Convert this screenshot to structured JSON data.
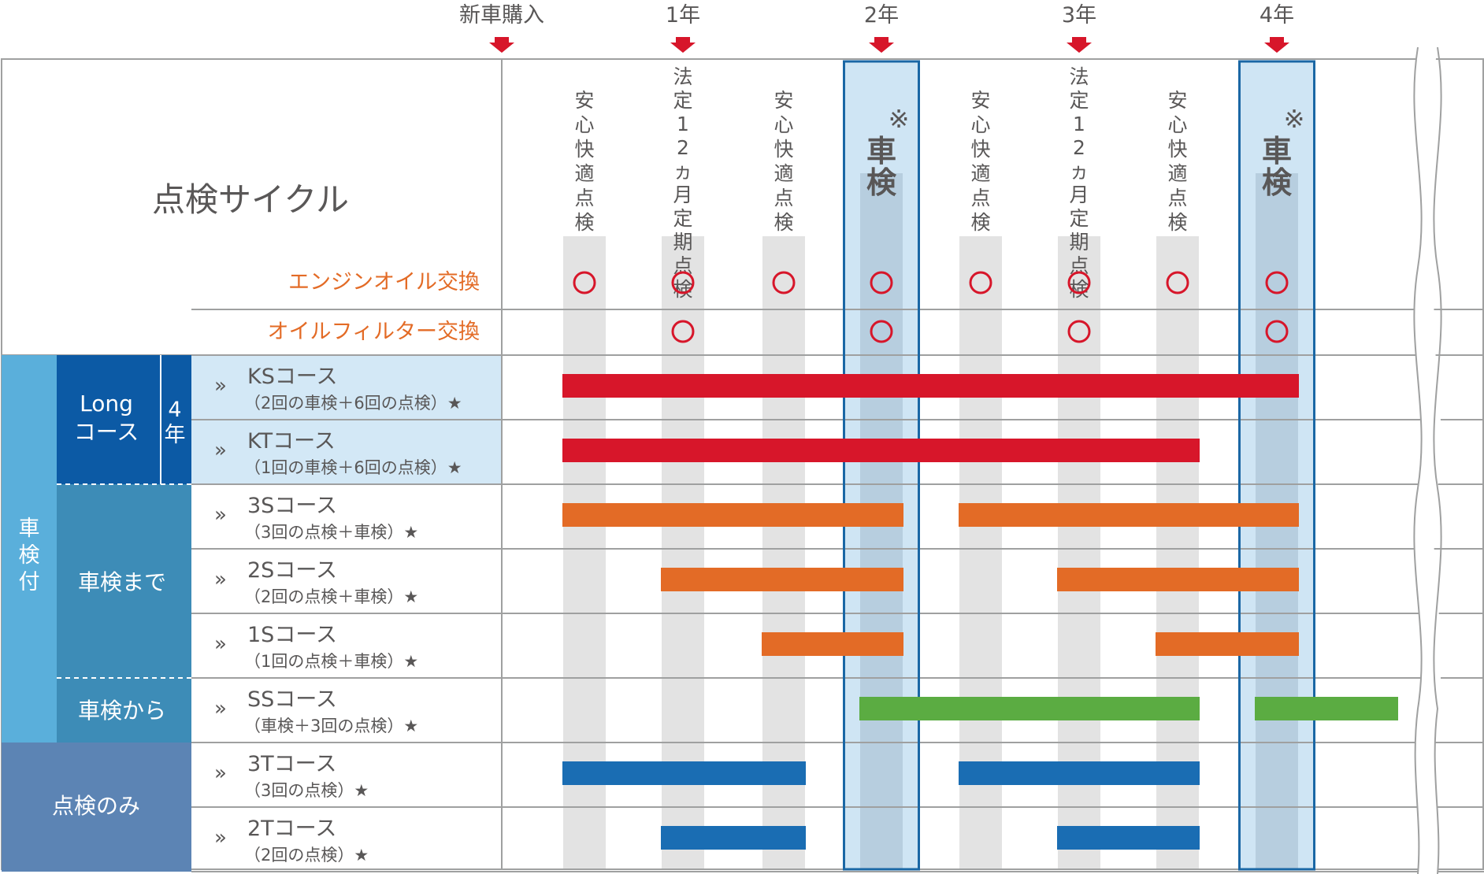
{
  "timeline": {
    "markers": [
      "新車購入",
      "1年",
      "2年",
      "3年",
      "4年"
    ]
  },
  "header": {
    "title": "点検サイクル",
    "engine_oil_label": "エンジンオイル交換",
    "oil_filter_label": "オイルフィルター交換",
    "shaken_note": "※"
  },
  "inspections": [
    {
      "label": "安心快適点検",
      "type": "anshin",
      "engine_oil": true,
      "oil_filter": false
    },
    {
      "label": "法定12ヵ月定期点検",
      "type": "legal",
      "engine_oil": true,
      "oil_filter": true
    },
    {
      "label": "安心快適点検",
      "type": "anshin",
      "engine_oil": true,
      "oil_filter": false
    },
    {
      "label": "車検",
      "type": "shaken",
      "engine_oil": true,
      "oil_filter": true
    },
    {
      "label": "安心快適点検",
      "type": "anshin",
      "engine_oil": true,
      "oil_filter": false
    },
    {
      "label": "法定12ヵ月定期点検",
      "type": "legal",
      "engine_oil": true,
      "oil_filter": true
    },
    {
      "label": "安心快適点検",
      "type": "anshin",
      "engine_oil": true,
      "oil_filter": false
    },
    {
      "label": "車検",
      "type": "shaken",
      "engine_oil": true,
      "oil_filter": true
    }
  ],
  "mark_symbol": "○",
  "groups": {
    "shaken_tsuki": "車検付",
    "long_course": [
      "Long",
      "コース"
    ],
    "long_years": [
      "4",
      "年"
    ],
    "shaken_made": "車検まで",
    "shaken_kara": "車検から",
    "tenken_nomi": "点検のみ"
  },
  "chevron": "»",
  "courses": [
    {
      "name": "KSコース",
      "detail": "（2回の車検＋6回の点検）★",
      "color": "#d7162a",
      "segments": [
        [
          0,
          7
        ]
      ]
    },
    {
      "name": "KTコース",
      "detail": "（1回の車検＋6回の点検）★",
      "color": "#d7162a",
      "segments": [
        [
          0,
          6
        ]
      ]
    },
    {
      "name": "3Sコース",
      "detail": "（3回の点検＋車検）★",
      "color": "#e36b26",
      "segments": [
        [
          0,
          3
        ],
        [
          4,
          7
        ]
      ]
    },
    {
      "name": "2Sコース",
      "detail": "（2回の点検＋車検）★",
      "color": "#e36b26",
      "segments": [
        [
          1,
          3
        ],
        [
          5,
          7
        ]
      ]
    },
    {
      "name": "1Sコース",
      "detail": "（1回の点検＋車検）★",
      "color": "#e36b26",
      "segments": [
        [
          2,
          3
        ],
        [
          6,
          7
        ]
      ]
    },
    {
      "name": "SSコース",
      "detail": "（車検＋3回の点検）★",
      "color": "#5bac42",
      "segments": [
        [
          3,
          6
        ],
        [
          7,
          8
        ]
      ]
    },
    {
      "name": "3Tコース",
      "detail": "（3回の点検）★",
      "color": "#1a6db3",
      "segments": [
        [
          0,
          2
        ],
        [
          4,
          6
        ]
      ]
    },
    {
      "name": "2Tコース",
      "detail": "（2回の点検）★",
      "color": "#1a6db3",
      "segments": [
        [
          1,
          2
        ],
        [
          5,
          6
        ]
      ]
    }
  ],
  "colors": {
    "text_gray": "#595757",
    "orange_label": "#e36b26",
    "circle_red": "#d7162a",
    "stripe_gray": "#e3e3e3",
    "shaken_fill": "#cfe5f4",
    "shaken_stripe": "#b7cedf",
    "shaken_border": "#1a67a5",
    "grid_line": "#9fa0a0",
    "group_light_blue": "#5aafdb",
    "group_long": "#0c5aa5",
    "group_teal": "#3d8cb7",
    "group_slate": "#5c84b4",
    "long_row_bg": "#d3e8f6"
  }
}
